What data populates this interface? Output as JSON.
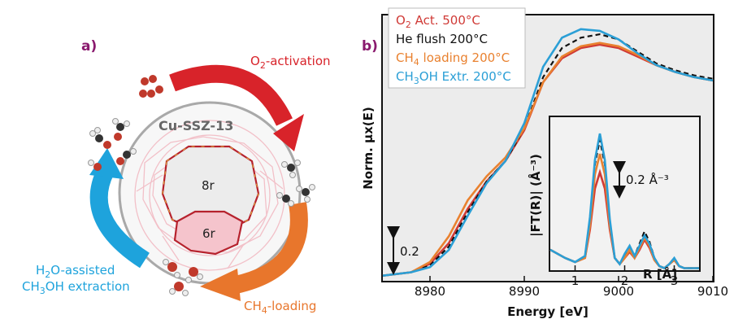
{
  "panel_a": {
    "label": "a)",
    "zeolite_label": "Cu-SSZ-13",
    "ring_8r": "8r",
    "ring_6r": "6r",
    "steps": [
      {
        "pre": "O",
        "sub": "2",
        "post": "-activation",
        "color": "#d8232a"
      },
      {
        "pre": "CH",
        "sub": "4",
        "post": "-loading",
        "color": "#e8762c"
      },
      {
        "pre": "H",
        "sub": "2",
        "post": "O-assisted",
        "color": "#1ea3dc"
      },
      {
        "pre": "CH",
        "sub": "3",
        "post": "OH extraction",
        "color": "#1ea3dc"
      }
    ]
  },
  "panel_b": {
    "label": "b)",
    "chart_data": [
      {
        "type": "line",
        "xlabel": "Energy [eV]",
        "ylabel": "Norm. μx(E)",
        "xlim": [
          8975,
          9010
        ],
        "xticks": [
          8980,
          8990,
          9000,
          9010
        ],
        "scale_bar": "0.2",
        "grid": false,
        "legend_position": "top-left",
        "series": [
          {
            "name_pre": "O",
            "name_sub": "2",
            "name_post": " Act. 500°C",
            "color": "#d03a36",
            "dash": "solid",
            "x": [
              8975,
              8978,
              8980,
              8982,
              8984,
              8986,
              8988,
              8990,
              8992,
              8994,
              8996,
              8998,
              9000,
              9002,
              9004,
              9006,
              9008,
              9010
            ],
            "y": [
              0.03,
              0.05,
              0.1,
              0.22,
              0.42,
              0.58,
              0.7,
              0.88,
              1.16,
              1.3,
              1.36,
              1.38,
              1.36,
              1.31,
              1.26,
              1.22,
              1.19,
              1.17
            ]
          },
          {
            "name_pre": "He flush 200°C",
            "name_sub": "",
            "name_post": "",
            "color": "#111111",
            "dash": "dashed",
            "x": [
              8975,
              8978,
              8980,
              8982,
              8984,
              8986,
              8988,
              8990,
              8992,
              8994,
              8996,
              8998,
              9000,
              9002,
              9004,
              9006,
              9008,
              9010
            ],
            "y": [
              0.03,
              0.05,
              0.09,
              0.2,
              0.4,
              0.58,
              0.7,
              0.89,
              1.19,
              1.36,
              1.42,
              1.44,
              1.41,
              1.34,
              1.27,
              1.23,
              1.2,
              1.18
            ]
          },
          {
            "name_pre": "CH",
            "name_sub": "4",
            "name_post": " loading 200°C",
            "color": "#e9812f",
            "dash": "solid",
            "x": [
              8975,
              8978,
              8980,
              8982,
              8984,
              8986,
              8988,
              8990,
              8992,
              8994,
              8996,
              8998,
              9000,
              9002,
              9004,
              9006,
              9008,
              9010
            ],
            "y": [
              0.03,
              0.05,
              0.11,
              0.26,
              0.47,
              0.61,
              0.72,
              0.89,
              1.16,
              1.31,
              1.37,
              1.39,
              1.37,
              1.32,
              1.26,
              1.22,
              1.19,
              1.17
            ]
          },
          {
            "name_pre": "CH",
            "name_sub": "3",
            "name_post": "OH Extr. 200°C",
            "color": "#2b9fd6",
            "dash": "solid",
            "x": [
              8975,
              8978,
              8980,
              8982,
              8984,
              8986,
              8988,
              8990,
              8992,
              8994,
              8996,
              8998,
              9000,
              9002,
              9004,
              9006,
              9008,
              9010
            ],
            "y": [
              0.03,
              0.05,
              0.08,
              0.18,
              0.38,
              0.57,
              0.7,
              0.92,
              1.25,
              1.42,
              1.47,
              1.46,
              1.41,
              1.33,
              1.26,
              1.22,
              1.19,
              1.17
            ]
          }
        ]
      },
      {
        "type": "line",
        "xlabel": "R [Å]",
        "ylabel": "|FT(R)| (Å⁻³)",
        "xlim": [
          0.5,
          3.5
        ],
        "xticks": [
          1,
          2,
          3
        ],
        "scale_bar": "0.2 Å⁻³",
        "grid": false,
        "series": [
          {
            "name": "O2 Act. 500°C",
            "color": "#d03a36",
            "dash": "solid",
            "x": [
              0.5,
              0.8,
              1.0,
              1.2,
              1.3,
              1.4,
              1.5,
              1.6,
              1.7,
              1.8,
              1.9,
              2.0,
              2.1,
              2.2,
              2.3,
              2.4,
              2.5,
              2.6,
              2.7,
              2.8,
              2.9,
              3.0,
              3.1,
              3.2,
              3.3,
              3.5
            ],
            "y": [
              0.1,
              0.06,
              0.04,
              0.06,
              0.2,
              0.4,
              0.48,
              0.4,
              0.2,
              0.06,
              0.03,
              0.06,
              0.09,
              0.06,
              0.1,
              0.15,
              0.11,
              0.05,
              0.02,
              0.01,
              0.03,
              0.05,
              0.02,
              0.01,
              0.01,
              0.01
            ]
          },
          {
            "name": "He flush 200°C",
            "color": "#111111",
            "dash": "dashed",
            "x": [
              0.5,
              0.8,
              1.0,
              1.2,
              1.3,
              1.4,
              1.5,
              1.6,
              1.7,
              1.8,
              1.9,
              2.0,
              2.1,
              2.2,
              2.3,
              2.4,
              2.5,
              2.6,
              2.7,
              2.8,
              2.9,
              3.0,
              3.1,
              3.2,
              3.3,
              3.5
            ],
            "y": [
              0.1,
              0.06,
              0.04,
              0.07,
              0.25,
              0.52,
              0.64,
              0.52,
              0.24,
              0.06,
              0.03,
              0.07,
              0.11,
              0.07,
              0.13,
              0.19,
              0.14,
              0.06,
              0.02,
              0.01,
              0.03,
              0.06,
              0.02,
              0.01,
              0.01,
              0.01
            ]
          },
          {
            "name": "CH4 loading 200°C",
            "color": "#e9812f",
            "dash": "solid",
            "x": [
              0.5,
              0.8,
              1.0,
              1.2,
              1.3,
              1.4,
              1.5,
              1.6,
              1.7,
              1.8,
              1.9,
              2.0,
              2.1,
              2.2,
              2.3,
              2.4,
              2.5,
              2.6,
              2.7,
              2.8,
              2.9,
              3.0,
              3.1,
              3.2,
              3.3,
              3.5
            ],
            "y": [
              0.1,
              0.06,
              0.04,
              0.06,
              0.22,
              0.47,
              0.57,
              0.47,
              0.22,
              0.06,
              0.03,
              0.06,
              0.1,
              0.06,
              0.11,
              0.16,
              0.12,
              0.05,
              0.02,
              0.01,
              0.03,
              0.05,
              0.02,
              0.01,
              0.01,
              0.01
            ]
          },
          {
            "name": "CH3OH Extr. 200°C",
            "color": "#2b9fd6",
            "dash": "solid",
            "x": [
              0.5,
              0.8,
              1.0,
              1.2,
              1.3,
              1.4,
              1.5,
              1.6,
              1.7,
              1.8,
              1.9,
              2.0,
              2.1,
              2.2,
              2.3,
              2.4,
              2.5,
              2.6,
              2.7,
              2.8,
              2.9,
              3.0,
              3.1,
              3.2,
              3.3,
              3.5
            ],
            "y": [
              0.1,
              0.06,
              0.04,
              0.07,
              0.26,
              0.54,
              0.67,
              0.54,
              0.25,
              0.06,
              0.03,
              0.08,
              0.12,
              0.07,
              0.12,
              0.17,
              0.13,
              0.06,
              0.02,
              0.01,
              0.03,
              0.06,
              0.02,
              0.01,
              0.01,
              0.01
            ]
          }
        ]
      }
    ]
  }
}
